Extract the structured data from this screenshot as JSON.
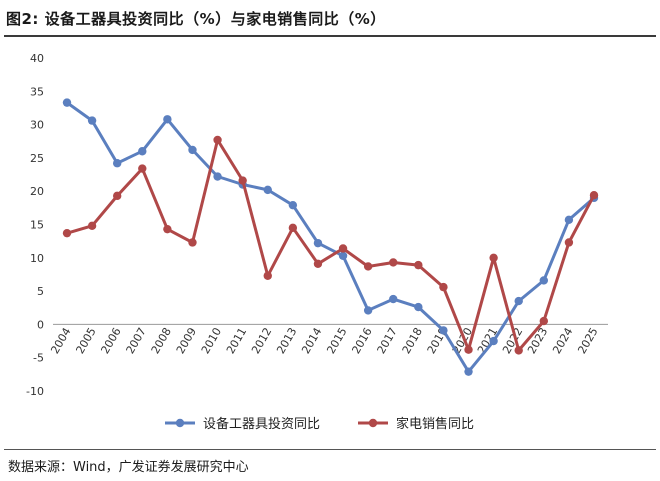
{
  "figure": {
    "title": "图2:  设备工器具投资同比（%）与家电销售同比（%）",
    "source": "数据来源：Wind，广发证券发展研究中心"
  },
  "chart_data": {
    "type": "line",
    "title": "图2:  设备工器具投资同比（%）与家电销售同比（%）",
    "xlabel": "",
    "ylabel": "",
    "ylim": [
      -10,
      40
    ],
    "yticks": [
      -10,
      -5,
      0,
      5,
      10,
      15,
      20,
      25,
      30,
      35,
      40
    ],
    "grid": false,
    "legend_position": "bottom",
    "x": [
      "2004",
      "2005",
      "2006",
      "2007",
      "2008",
      "2009",
      "2010",
      "2011",
      "2012",
      "2013",
      "2014",
      "2015",
      "2016",
      "2017",
      "2018",
      "2019",
      "2020",
      "2021",
      "2022",
      "2023",
      "2024",
      "2025"
    ],
    "series": [
      {
        "name": "设备工器具投资同比",
        "color": "#5b7fbf",
        "values": [
          33.3,
          30.6,
          24.2,
          26.0,
          30.8,
          26.2,
          22.2,
          21.0,
          20.2,
          17.9,
          12.2,
          10.3,
          2.1,
          3.8,
          2.6,
          -0.9,
          -7.1,
          -2.5,
          3.5,
          6.6,
          15.7,
          19.0
        ]
      },
      {
        "name": "家电销售同比",
        "color": "#b04848",
        "values": [
          13.7,
          14.8,
          19.3,
          23.4,
          14.3,
          12.3,
          27.7,
          21.6,
          7.3,
          14.5,
          9.1,
          11.4,
          8.7,
          9.3,
          8.9,
          5.6,
          -3.8,
          10.0,
          -3.9,
          0.5,
          12.3,
          19.4
        ]
      }
    ]
  }
}
